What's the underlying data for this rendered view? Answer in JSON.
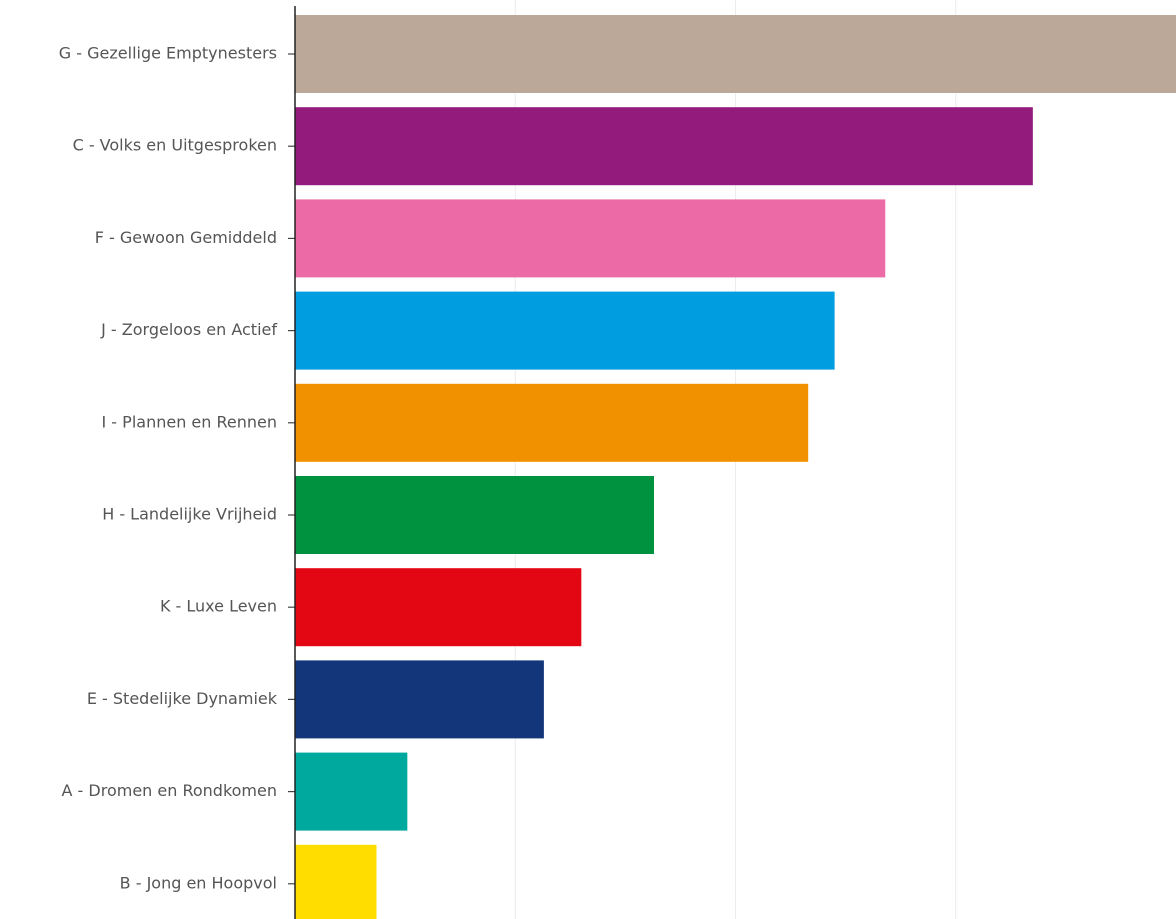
{
  "chart_data": {
    "type": "bar",
    "orientation": "horizontal",
    "title": "",
    "xlabel": "",
    "ylabel": "",
    "grid": true,
    "categories": [
      "G - Gezellige Emptynesters",
      "C - Volks en Uitgesproken",
      "F - Gewoon Gemiddeld",
      "J - Zorgeloos en Actief",
      "I - Plannen en Rennen",
      "H - Landelijke Vrijheid",
      "K - Luxe Leven",
      "E - Stedelijke Dynamiek",
      "A - Dromen en Rondkomen",
      "B - Jong en Hoopvol"
    ],
    "values": [
      4.0,
      3.35,
      2.68,
      2.45,
      2.33,
      1.63,
      1.3,
      1.13,
      0.51,
      0.37
    ],
    "colors": [
      "#bba898",
      "#921b7c",
      "#ec6aa5",
      "#009de0",
      "#f29100",
      "#00923f",
      "#e30613",
      "#13357a",
      "#00a99d",
      "#ffdd00"
    ],
    "xlim": [
      0,
      4.0
    ],
    "x_gridlines": [
      1,
      2,
      3
    ]
  }
}
